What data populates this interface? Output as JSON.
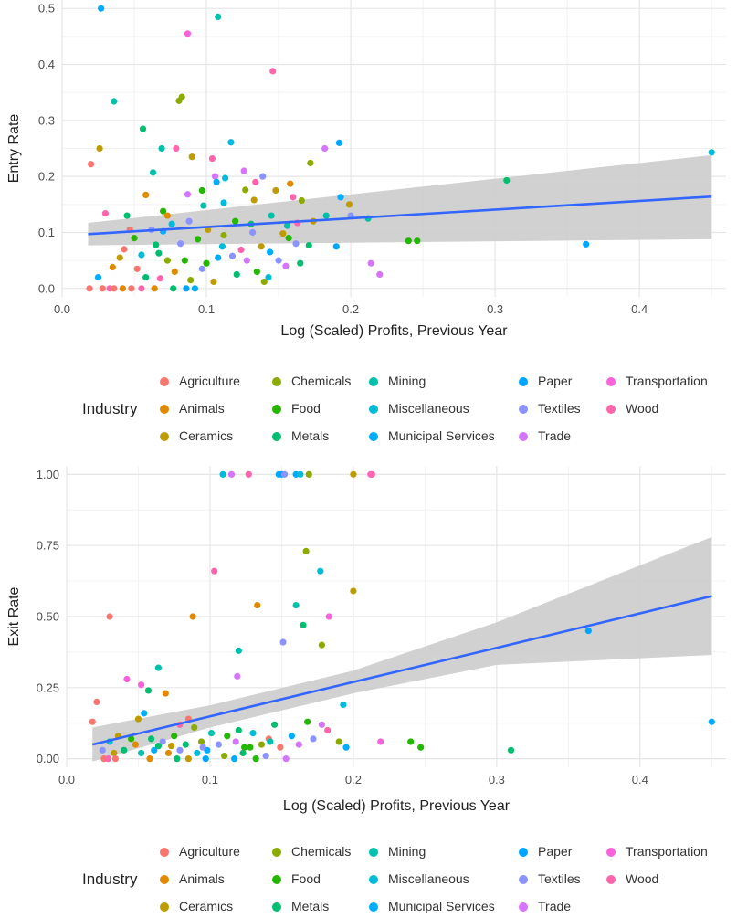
{
  "colors": {
    "Agriculture": "#F8766D",
    "Animals": "#E18A00",
    "Ceramics": "#BE9C00",
    "Chemicals": "#8CAB00",
    "Food": "#24B700",
    "Metals": "#00BE70",
    "Mining": "#00C1AB",
    "Miscellaneous": "#00BBDA",
    "Municipal Services": "#00ACFC",
    "Paper": "#00A5FF",
    "Textiles": "#8B93FF",
    "Trade": "#D575FE",
    "Transportation": "#F962DD",
    "Wood": "#FF65AC",
    "fit_line": "#3366FF",
    "ribbon": "#cccccc"
  },
  "legend": {
    "title": "Industry",
    "entries": [
      "Agriculture",
      "Animals",
      "Ceramics",
      "Chemicals",
      "Food",
      "Metals",
      "Mining",
      "Miscellaneous",
      "Municipal Services",
      "Paper",
      "Textiles",
      "Trade",
      "Transportation",
      "Wood"
    ]
  },
  "chart_data": [
    {
      "type": "scatter",
      "xlabel": "Log (Scaled) Profits, Previous Year",
      "ylabel": "Entry Rate",
      "xlim": [
        0,
        0.46
      ],
      "ylim": [
        -0.015,
        0.515
      ],
      "xticks": [
        0.0,
        0.1,
        0.2,
        0.3,
        0.4
      ],
      "xtick_labels": [
        "0.0",
        "0.1",
        "0.2",
        "0.3",
        "0.4"
      ],
      "yticks": [
        0.0,
        0.1,
        0.2,
        0.3,
        0.4,
        0.5
      ],
      "ytick_labels": [
        "0.0",
        "0.1",
        "0.2",
        "0.3",
        "0.4",
        "0.5"
      ],
      "grid": true,
      "legend_position": "bottom",
      "fit": {
        "x": [
          0.018,
          0.45
        ],
        "y": [
          0.097,
          0.164
        ],
        "lower": [
          0.077,
          0.088
        ],
        "upper": [
          0.117,
          0.238
        ]
      },
      "points": [
        [
          0.027,
          0.5,
          "Municipal Services"
        ],
        [
          0.087,
          0.455,
          "Transportation"
        ],
        [
          0.108,
          0.485,
          "Mining"
        ],
        [
          0.146,
          0.388,
          "Wood"
        ],
        [
          0.083,
          0.342,
          "Chemicals"
        ],
        [
          0.081,
          0.335,
          "Chemicals"
        ],
        [
          0.036,
          0.334,
          "Mining"
        ],
        [
          0.056,
          0.285,
          "Metals"
        ],
        [
          0.026,
          0.25,
          "Ceramics"
        ],
        [
          0.02,
          0.222,
          "Agriculture"
        ],
        [
          0.069,
          0.25,
          "Mining"
        ],
        [
          0.079,
          0.25,
          "Wood"
        ],
        [
          0.117,
          0.261,
          "Miscellaneous"
        ],
        [
          0.192,
          0.26,
          "Paper"
        ],
        [
          0.182,
          0.25,
          "Trade"
        ],
        [
          0.104,
          0.232,
          "Wood"
        ],
        [
          0.09,
          0.235,
          "Ceramics"
        ],
        [
          0.172,
          0.224,
          "Chemicals"
        ],
        [
          0.308,
          0.193,
          "Metals"
        ],
        [
          0.45,
          0.243,
          "Miscellaneous"
        ],
        [
          0.063,
          0.207,
          "Mining"
        ],
        [
          0.126,
          0.21,
          "Trade"
        ],
        [
          0.139,
          0.2,
          "Textiles"
        ],
        [
          0.106,
          0.2,
          "Trade"
        ],
        [
          0.113,
          0.197,
          "Miscellaneous"
        ],
        [
          0.158,
          0.187,
          "Animals"
        ],
        [
          0.107,
          0.19,
          "Municipal Services"
        ],
        [
          0.134,
          0.19,
          "Wood"
        ],
        [
          0.058,
          0.167,
          "Animals"
        ],
        [
          0.087,
          0.168,
          "Trade"
        ],
        [
          0.097,
          0.175,
          "Food"
        ],
        [
          0.127,
          0.176,
          "Chemicals"
        ],
        [
          0.148,
          0.175,
          "Ceramics"
        ],
        [
          0.16,
          0.163,
          "Wood"
        ],
        [
          0.166,
          0.157,
          "Chemicals"
        ],
        [
          0.193,
          0.163,
          "Municipal Services"
        ],
        [
          0.199,
          0.15,
          "Ceramics"
        ],
        [
          0.098,
          0.148,
          "Mining"
        ],
        [
          0.112,
          0.153,
          "Miscellaneous"
        ],
        [
          0.133,
          0.158,
          "Ceramics"
        ],
        [
          0.07,
          0.138,
          "Food"
        ],
        [
          0.073,
          0.13,
          "Animals"
        ],
        [
          0.045,
          0.13,
          "Metals"
        ],
        [
          0.03,
          0.134,
          "Wood"
        ],
        [
          0.088,
          0.12,
          "Textiles"
        ],
        [
          0.12,
          0.12,
          "Food"
        ],
        [
          0.131,
          0.115,
          "Metals"
        ],
        [
          0.174,
          0.12,
          "Ceramics"
        ],
        [
          0.183,
          0.13,
          "Mining"
        ],
        [
          0.2,
          0.13,
          "Textiles"
        ],
        [
          0.212,
          0.125,
          "Mining"
        ],
        [
          0.145,
          0.13,
          "Mining"
        ],
        [
          0.163,
          0.117,
          "Wood"
        ],
        [
          0.156,
          0.112,
          "Mining"
        ],
        [
          0.076,
          0.115,
          "Miscellaneous"
        ],
        [
          0.047,
          0.105,
          "Agriculture"
        ],
        [
          0.062,
          0.105,
          "Textiles"
        ],
        [
          0.101,
          0.105,
          "Ceramics"
        ],
        [
          0.153,
          0.098,
          "Ceramics"
        ],
        [
          0.162,
          0.08,
          "Textiles"
        ],
        [
          0.171,
          0.077,
          "Metals"
        ],
        [
          0.19,
          0.075,
          "Paper"
        ],
        [
          0.24,
          0.085,
          "Food"
        ],
        [
          0.246,
          0.085,
          "Food"
        ],
        [
          0.363,
          0.079,
          "Paper"
        ],
        [
          0.214,
          0.045,
          "Trade"
        ],
        [
          0.22,
          0.025,
          "Trade"
        ],
        [
          0.05,
          0.09,
          "Food"
        ],
        [
          0.065,
          0.078,
          "Metals"
        ],
        [
          0.082,
          0.08,
          "Textiles"
        ],
        [
          0.094,
          0.088,
          "Food"
        ],
        [
          0.111,
          0.075,
          "Miscellaneous"
        ],
        [
          0.124,
          0.069,
          "Wood"
        ],
        [
          0.138,
          0.075,
          "Ceramics"
        ],
        [
          0.144,
          0.065,
          "Municipal Services"
        ],
        [
          0.118,
          0.058,
          "Textiles"
        ],
        [
          0.04,
          0.055,
          "Ceramics"
        ],
        [
          0.043,
          0.07,
          "Agriculture"
        ],
        [
          0.055,
          0.06,
          "Miscellaneous"
        ],
        [
          0.067,
          0.063,
          "Metals"
        ],
        [
          0.073,
          0.05,
          "Chemicals"
        ],
        [
          0.085,
          0.05,
          "Food"
        ],
        [
          0.1,
          0.045,
          "Food"
        ],
        [
          0.108,
          0.055,
          "Municipal Services"
        ],
        [
          0.128,
          0.05,
          "Trade"
        ],
        [
          0.15,
          0.05,
          "Textiles"
        ],
        [
          0.155,
          0.04,
          "Trade"
        ],
        [
          0.165,
          0.045,
          "Metals"
        ],
        [
          0.035,
          0.038,
          "Animals"
        ],
        [
          0.052,
          0.035,
          "Agriculture"
        ],
        [
          0.078,
          0.03,
          "Animals"
        ],
        [
          0.097,
          0.035,
          "Textiles"
        ],
        [
          0.121,
          0.025,
          "Metals"
        ],
        [
          0.135,
          0.03,
          "Food"
        ],
        [
          0.143,
          0.02,
          "Miscellaneous"
        ],
        [
          0.058,
          0.02,
          "Metals"
        ],
        [
          0.068,
          0.018,
          "Wood"
        ],
        [
          0.089,
          0.015,
          "Chemicals"
        ],
        [
          0.105,
          0.012,
          "Ceramics"
        ],
        [
          0.14,
          0.012,
          "Chemicals"
        ],
        [
          0.019,
          0.0,
          "Agriculture"
        ],
        [
          0.028,
          0.0,
          "Agriculture"
        ],
        [
          0.033,
          0.0,
          "Wood"
        ],
        [
          0.036,
          0.0,
          "Agriculture"
        ],
        [
          0.042,
          0.0,
          "Animals"
        ],
        [
          0.048,
          0.0,
          "Agriculture"
        ],
        [
          0.055,
          0.0,
          "Wood"
        ],
        [
          0.064,
          0.0,
          "Animals"
        ],
        [
          0.077,
          0.0,
          "Metals"
        ],
        [
          0.086,
          0.0,
          "Paper"
        ],
        [
          0.092,
          0.0,
          "Municipal Services"
        ],
        [
          0.025,
          0.02,
          "Municipal Services"
        ],
        [
          0.112,
          0.095,
          "Chemicals"
        ],
        [
          0.132,
          0.1,
          "Textiles"
        ],
        [
          0.157,
          0.09,
          "Food"
        ],
        [
          0.07,
          0.102,
          "Municipal Services"
        ]
      ]
    },
    {
      "type": "scatter",
      "xlabel": "Log (Scaled) Profits, Previous Year",
      "ylabel": "Exit Rate",
      "xlim": [
        0,
        0.46
      ],
      "ylim": [
        -0.03,
        1.03
      ],
      "xticks": [
        0.0,
        0.1,
        0.2,
        0.3,
        0.4
      ],
      "xtick_labels": [
        "0.0",
        "0.1",
        "0.2",
        "0.3",
        "0.4"
      ],
      "yticks": [
        0.0,
        0.25,
        0.5,
        0.75,
        1.0
      ],
      "ytick_labels": [
        "0.00",
        "0.25",
        "0.50",
        "0.75",
        "1.00"
      ],
      "grid": true,
      "legend_position": "bottom",
      "fit": {
        "x": [
          0.018,
          0.1,
          0.2,
          0.3,
          0.45
        ],
        "y": [
          0.05,
          0.149,
          0.27,
          0.39,
          0.572
        ],
        "lower": [
          -0.01,
          0.11,
          0.23,
          0.33,
          0.365
        ],
        "upper": [
          0.11,
          0.188,
          0.31,
          0.48,
          0.78
        ]
      },
      "points": [
        [
          0.109,
          1.0,
          "Miscellaneous"
        ],
        [
          0.115,
          1.0,
          "Trade"
        ],
        [
          0.127,
          1.0,
          "Wood"
        ],
        [
          0.148,
          1.0,
          "Municipal Services"
        ],
        [
          0.15,
          1.0,
          "Paper"
        ],
        [
          0.152,
          1.0,
          "Textiles"
        ],
        [
          0.16,
          1.0,
          "Municipal Services"
        ],
        [
          0.163,
          1.0,
          "Miscellaneous"
        ],
        [
          0.169,
          1.0,
          "Chemicals"
        ],
        [
          0.2,
          1.0,
          "Ceramics"
        ],
        [
          0.212,
          1.0,
          "Transportation"
        ],
        [
          0.213,
          1.0,
          "Wood"
        ],
        [
          0.167,
          0.73,
          "Chemicals"
        ],
        [
          0.177,
          0.66,
          "Miscellaneous"
        ],
        [
          0.103,
          0.66,
          "Wood"
        ],
        [
          0.2,
          0.59,
          "Ceramics"
        ],
        [
          0.16,
          0.54,
          "Mining"
        ],
        [
          0.133,
          0.54,
          "Animals"
        ],
        [
          0.03,
          0.5,
          "Agriculture"
        ],
        [
          0.088,
          0.5,
          "Animals"
        ],
        [
          0.183,
          0.5,
          "Transportation"
        ],
        [
          0.165,
          0.47,
          "Metals"
        ],
        [
          0.364,
          0.45,
          "Paper"
        ],
        [
          0.151,
          0.41,
          "Textiles"
        ],
        [
          0.178,
          0.4,
          "Chemicals"
        ],
        [
          0.12,
          0.38,
          "Mining"
        ],
        [
          0.064,
          0.32,
          "Mining"
        ],
        [
          0.119,
          0.29,
          "Trade"
        ],
        [
          0.042,
          0.28,
          "Transportation"
        ],
        [
          0.052,
          0.26,
          "Transportation"
        ],
        [
          0.057,
          0.24,
          "Metals"
        ],
        [
          0.069,
          0.23,
          "Animals"
        ],
        [
          0.021,
          0.2,
          "Agriculture"
        ],
        [
          0.193,
          0.19,
          "Miscellaneous"
        ],
        [
          0.054,
          0.16,
          "Municipal Services"
        ],
        [
          0.05,
          0.14,
          "Ceramics"
        ],
        [
          0.085,
          0.14,
          "Agriculture"
        ],
        [
          0.018,
          0.13,
          "Agriculture"
        ],
        [
          0.45,
          0.13,
          "Municipal Services"
        ],
        [
          0.079,
          0.12,
          "Wood"
        ],
        [
          0.089,
          0.11,
          "Chemicals"
        ],
        [
          0.12,
          0.1,
          "Metals"
        ],
        [
          0.145,
          0.12,
          "Metals"
        ],
        [
          0.168,
          0.13,
          "Food"
        ],
        [
          0.178,
          0.12,
          "Trade"
        ],
        [
          0.182,
          0.1,
          "Wood"
        ],
        [
          0.101,
          0.09,
          "Mining"
        ],
        [
          0.112,
          0.08,
          "Food"
        ],
        [
          0.13,
          0.09,
          "Miscellaneous"
        ],
        [
          0.141,
          0.07,
          "Agriculture"
        ],
        [
          0.157,
          0.08,
          "Municipal Services"
        ],
        [
          0.172,
          0.07,
          "Textiles"
        ],
        [
          0.19,
          0.06,
          "Chemicals"
        ],
        [
          0.219,
          0.06,
          "Transportation"
        ],
        [
          0.24,
          0.06,
          "Food"
        ],
        [
          0.247,
          0.04,
          "Food"
        ],
        [
          0.31,
          0.03,
          "Metals"
        ],
        [
          0.195,
          0.04,
          "Municipal Services"
        ],
        [
          0.03,
          0.06,
          "Miscellaneous"
        ],
        [
          0.036,
          0.08,
          "Ceramics"
        ],
        [
          0.045,
          0.07,
          "Food"
        ],
        [
          0.059,
          0.07,
          "Metals"
        ],
        [
          0.067,
          0.06,
          "Textiles"
        ],
        [
          0.075,
          0.08,
          "Food"
        ],
        [
          0.083,
          0.05,
          "Metals"
        ],
        [
          0.094,
          0.06,
          "Chemicals"
        ],
        [
          0.106,
          0.05,
          "Textiles"
        ],
        [
          0.118,
          0.06,
          "Trade"
        ],
        [
          0.124,
          0.04,
          "Food"
        ],
        [
          0.136,
          0.05,
          "Chemicals"
        ],
        [
          0.149,
          0.04,
          "Agriculture"
        ],
        [
          0.162,
          0.05,
          "Trade"
        ],
        [
          0.025,
          0.03,
          "Textiles"
        ],
        [
          0.033,
          0.02,
          "Ceramics"
        ],
        [
          0.04,
          0.03,
          "Metals"
        ],
        [
          0.052,
          0.02,
          "Mining"
        ],
        [
          0.061,
          0.03,
          "Municipal Services"
        ],
        [
          0.071,
          0.02,
          "Animals"
        ],
        [
          0.079,
          0.03,
          "Textiles"
        ],
        [
          0.091,
          0.02,
          "Miscellaneous"
        ],
        [
          0.098,
          0.03,
          "Municipal Services"
        ],
        [
          0.11,
          0.01,
          "Chemicals"
        ],
        [
          0.123,
          0.02,
          "Metals"
        ],
        [
          0.139,
          0.01,
          "Textiles"
        ],
        [
          0.026,
          0.0,
          "Agriculture"
        ],
        [
          0.029,
          0.0,
          "Wood"
        ],
        [
          0.034,
          0.0,
          "Agriculture"
        ],
        [
          0.058,
          0.0,
          "Animals"
        ],
        [
          0.077,
          0.0,
          "Metals"
        ],
        [
          0.085,
          0.0,
          "Ceramics"
        ],
        [
          0.097,
          0.0,
          "Paper"
        ],
        [
          0.117,
          0.0,
          "Municipal Services"
        ],
        [
          0.132,
          0.0,
          "Food"
        ],
        [
          0.153,
          0.0,
          "Trade"
        ],
        [
          0.048,
          0.05,
          "Animals"
        ],
        [
          0.064,
          0.045,
          "Metals"
        ],
        [
          0.073,
          0.045,
          "Ceramics"
        ],
        [
          0.095,
          0.04,
          "Textiles"
        ],
        [
          0.128,
          0.04,
          "Food"
        ],
        [
          0.142,
          0.06,
          "Mining"
        ]
      ]
    }
  ]
}
